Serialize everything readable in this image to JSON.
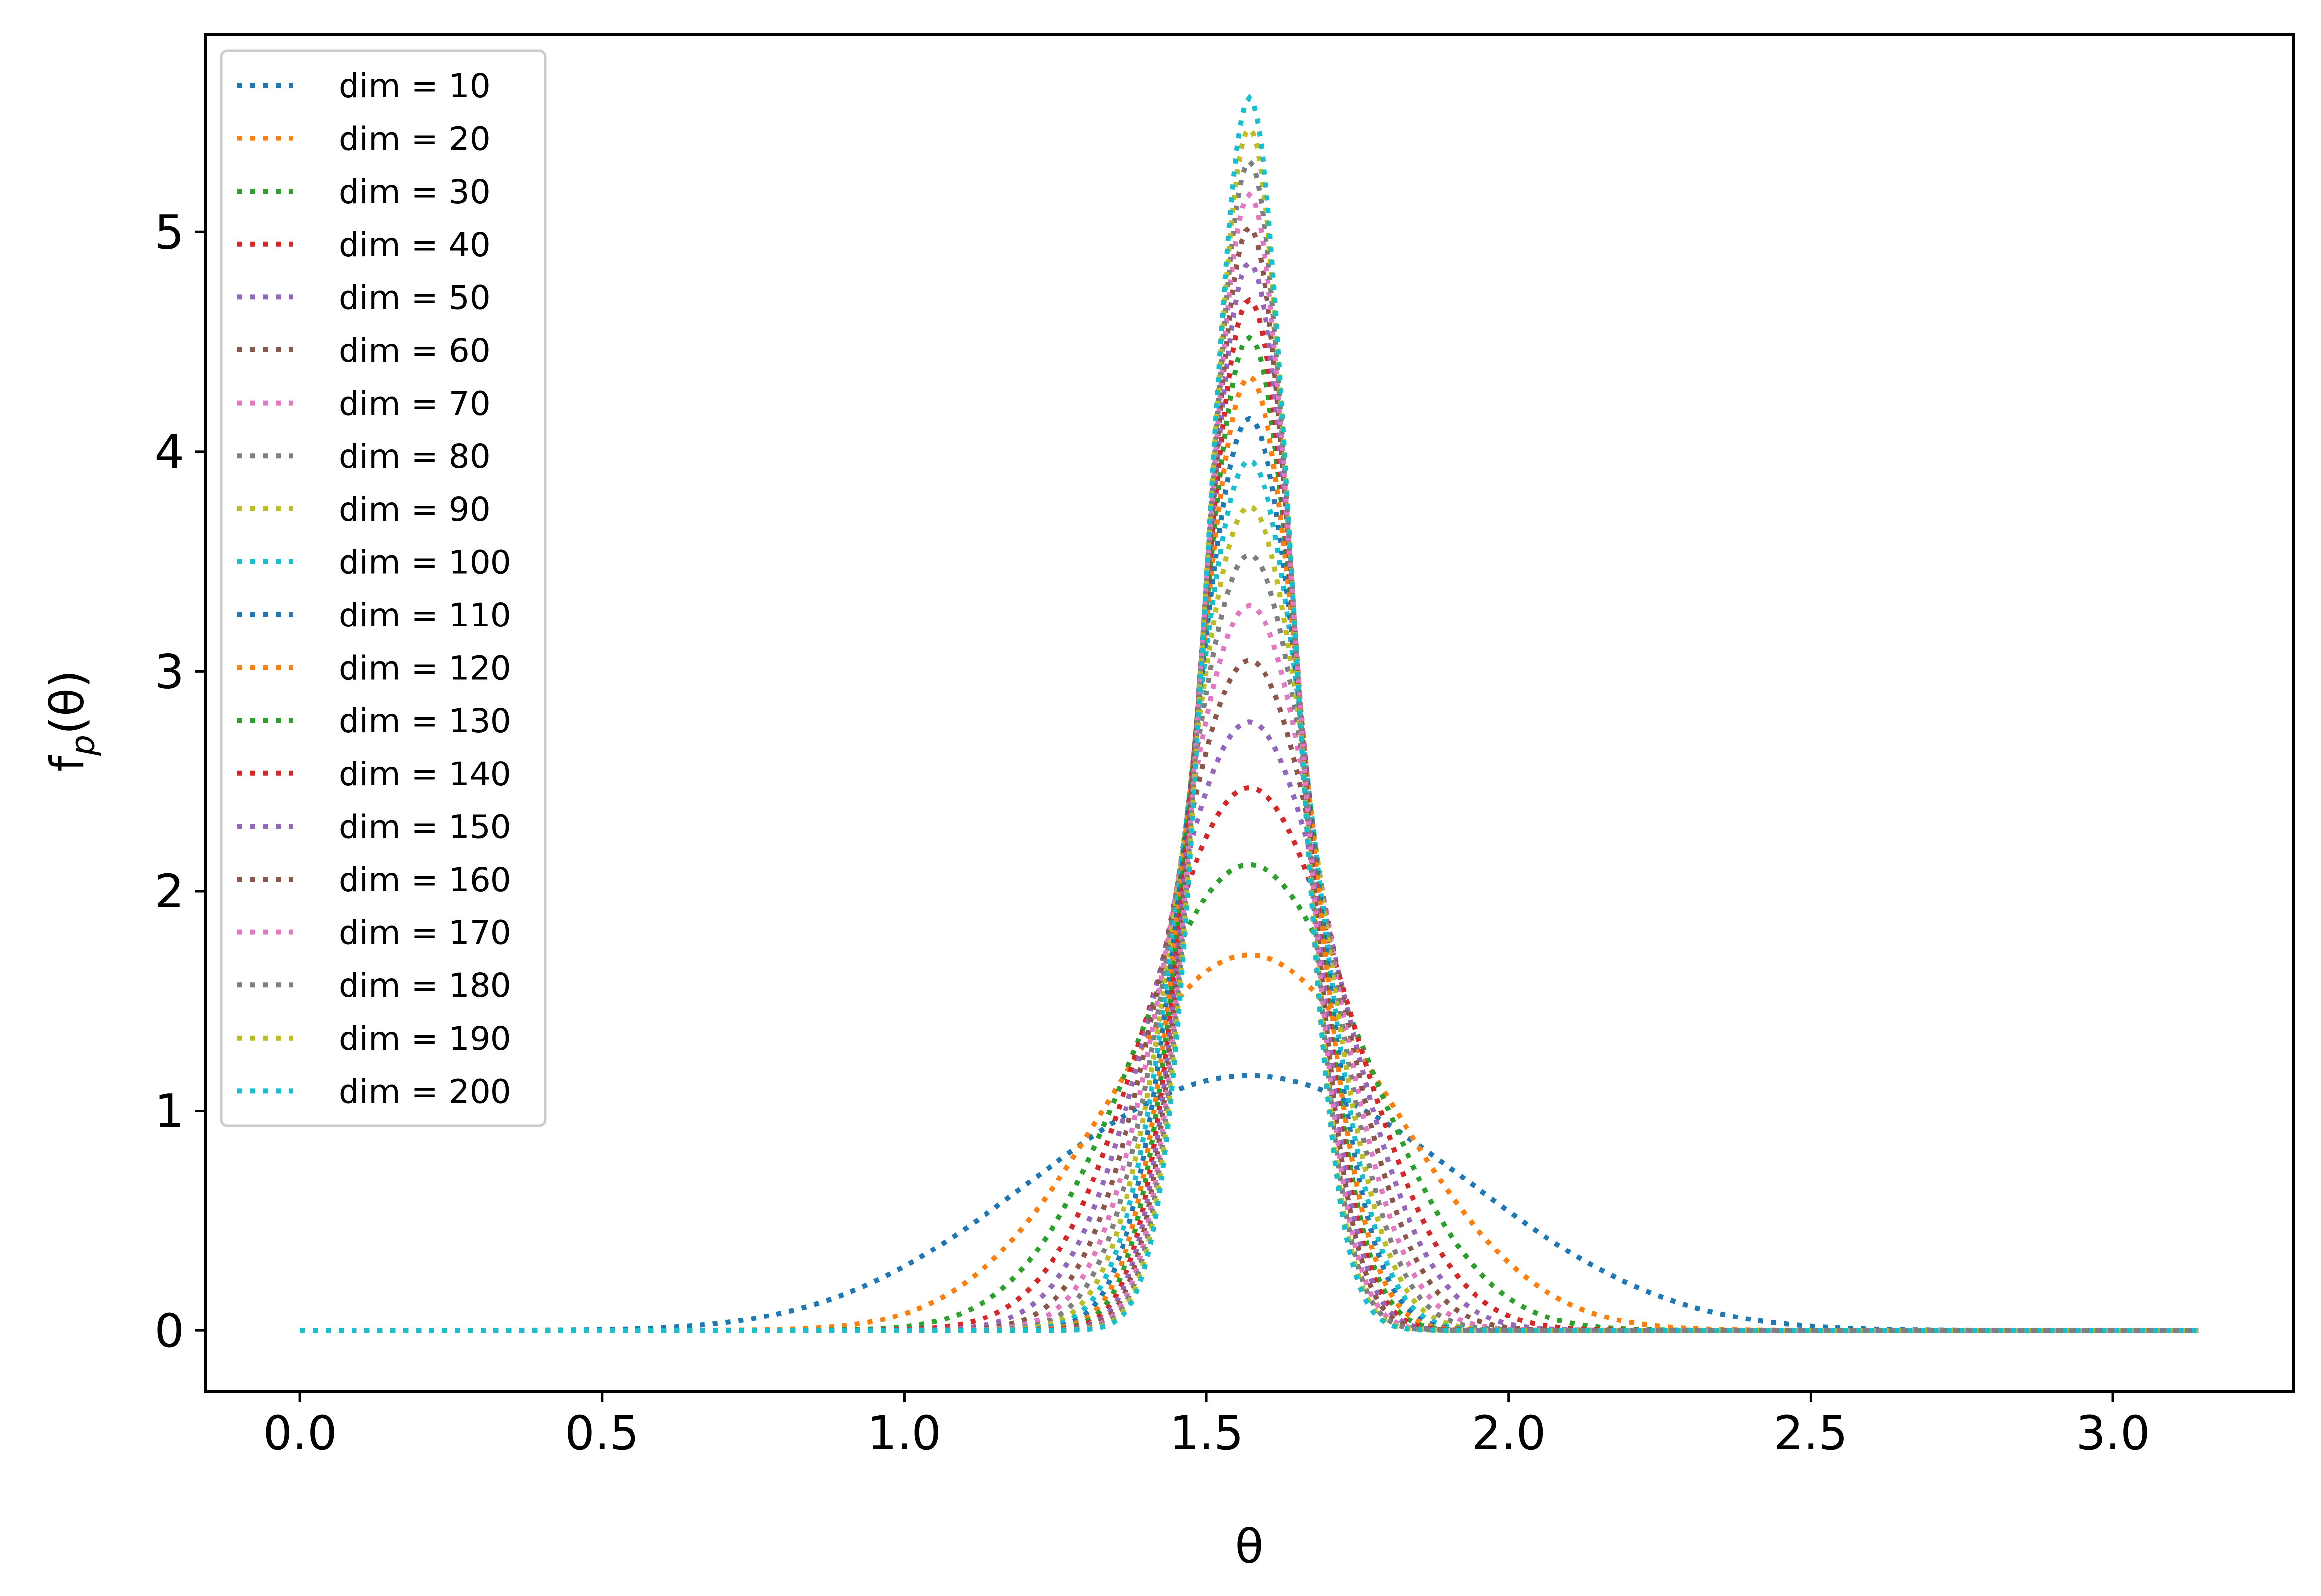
{
  "chart_data": {
    "type": "line",
    "line_style": "dotted",
    "xlabel": "θ",
    "ylabel_main": "f",
    "ylabel_sub": "p",
    "ylabel_rest": "(θ)",
    "xlim": [
      -0.157,
      3.299
    ],
    "ylim": [
      -0.28,
      5.9
    ],
    "xticks": [
      0.0,
      0.5,
      1.0,
      1.5,
      2.0,
      2.5,
      3.0
    ],
    "xtick_labels": [
      "0.0",
      "0.5",
      "1.0",
      "1.5",
      "2.0",
      "2.5",
      "3.0"
    ],
    "yticks": [
      0,
      1,
      2,
      3,
      4,
      5
    ],
    "ytick_labels": [
      "0",
      "1",
      "2",
      "3",
      "4",
      "5"
    ],
    "x_domain": [
      0.0,
      3.1416
    ],
    "peak_x": 1.5708,
    "legend_position": "upper-left",
    "grid": false,
    "series": [
      {
        "name": "dim = 10",
        "dim": 10,
        "color": "#1f77b4",
        "peak": 1.16
      },
      {
        "name": "dim = 20",
        "dim": 20,
        "color": "#ff7f0e",
        "peak": 1.71
      },
      {
        "name": "dim = 30",
        "dim": 30,
        "color": "#2ca02c",
        "peak": 2.12
      },
      {
        "name": "dim = 40",
        "dim": 40,
        "color": "#d62728",
        "peak": 2.47
      },
      {
        "name": "dim = 50",
        "dim": 50,
        "color": "#9467bd",
        "peak": 2.77
      },
      {
        "name": "dim = 60",
        "dim": 60,
        "color": "#8c564b",
        "peak": 3.05
      },
      {
        "name": "dim = 70",
        "dim": 70,
        "color": "#e377c2",
        "peak": 3.3
      },
      {
        "name": "dim = 80",
        "dim": 80,
        "color": "#7f7f7f",
        "peak": 3.53
      },
      {
        "name": "dim = 90",
        "dim": 90,
        "color": "#bcbd22",
        "peak": 3.75
      },
      {
        "name": "dim = 100",
        "dim": 100,
        "color": "#17becf",
        "peak": 3.96
      },
      {
        "name": "dim = 110",
        "dim": 110,
        "color": "#1f77b4",
        "peak": 4.15
      },
      {
        "name": "dim = 120",
        "dim": 120,
        "color": "#ff7f0e",
        "peak": 4.34
      },
      {
        "name": "dim = 130",
        "dim": 130,
        "color": "#2ca02c",
        "peak": 4.52
      },
      {
        "name": "dim = 140",
        "dim": 140,
        "color": "#d62728",
        "peak": 4.69
      },
      {
        "name": "dim = 150",
        "dim": 150,
        "color": "#9467bd",
        "peak": 4.86
      },
      {
        "name": "dim = 160",
        "dim": 160,
        "color": "#8c564b",
        "peak": 5.02
      },
      {
        "name": "dim = 170",
        "dim": 170,
        "color": "#e377c2",
        "peak": 5.17
      },
      {
        "name": "dim = 180",
        "dim": 180,
        "color": "#7f7f7f",
        "peak": 5.32
      },
      {
        "name": "dim = 190",
        "dim": 190,
        "color": "#bcbd22",
        "peak": 5.47
      },
      {
        "name": "dim = 200",
        "dim": 200,
        "color": "#17becf",
        "peak": 5.61
      }
    ]
  }
}
